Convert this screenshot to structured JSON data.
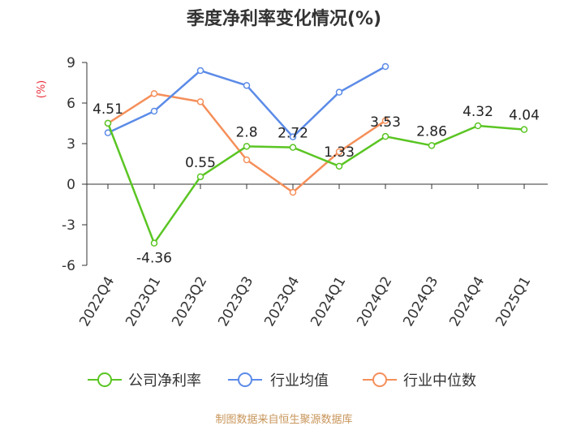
{
  "chart_data": {
    "type": "line",
    "title": "季度净利率变化情况(%)",
    "ylabel": "(%)",
    "xlabel": "",
    "ylim": [
      -6,
      9
    ],
    "yticks": [
      "9",
      "6",
      "3",
      "0",
      "-3",
      "-6"
    ],
    "categories": [
      "2022Q4",
      "2023Q1",
      "2023Q2",
      "2023Q3",
      "2023Q4",
      "2024Q1",
      "2024Q2",
      "2024Q3",
      "2024Q4",
      "2025Q1"
    ],
    "series": [
      {
        "name": "公司净利率",
        "color": "#5ac523",
        "values": [
          4.51,
          -4.36,
          0.55,
          2.8,
          2.72,
          1.33,
          3.53,
          2.86,
          4.32,
          4.04
        ],
        "labels": [
          "4.51",
          "-4.36",
          "0.55",
          "2.8",
          "2.72",
          "1.33",
          "3.53",
          "2.86",
          "4.32",
          "4.04"
        ]
      },
      {
        "name": "行业均值",
        "color": "#5b8be8",
        "values": [
          3.8,
          5.4,
          8.4,
          7.3,
          3.5,
          6.8,
          8.7,
          null,
          null,
          null
        ]
      },
      {
        "name": "行业中位数",
        "color": "#f58f5a",
        "values": [
          4.5,
          6.7,
          6.1,
          1.8,
          -0.6,
          2.4,
          4.7,
          null,
          null,
          null
        ]
      }
    ],
    "grid": false,
    "legend_position": "bottom"
  },
  "source_note": "制图数据来自恒生聚源数据库"
}
